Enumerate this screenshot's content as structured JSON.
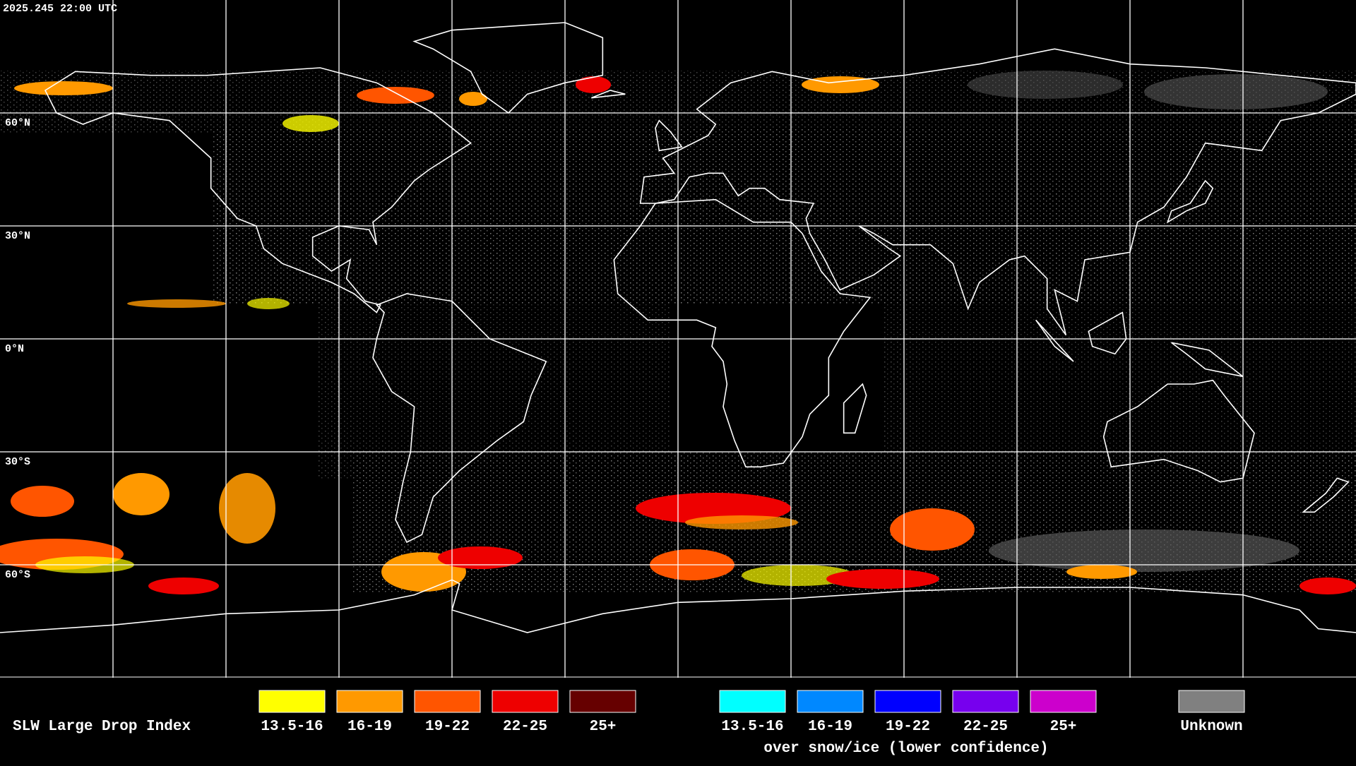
{
  "timestamp": "2025.245 22:00 UTC",
  "latitude_labels": [
    "60°N",
    "30°N",
    "0°N",
    "30°S",
    "60°S"
  ],
  "legend": {
    "title": "SLW Large Drop Index",
    "liquid": [
      {
        "label": "13.5-16",
        "color": "#ffff00"
      },
      {
        "label": "16-19",
        "color": "#ff9900"
      },
      {
        "label": "19-22",
        "color": "#ff5500"
      },
      {
        "label": "22-25",
        "color": "#ee0000"
      },
      {
        "label": "25+",
        "color": "#660000"
      }
    ],
    "snow_ice": [
      {
        "label": "13.5-16",
        "color": "#00ffff"
      },
      {
        "label": "16-19",
        "color": "#0088ff"
      },
      {
        "label": "19-22",
        "color": "#0000ff"
      },
      {
        "label": "22-25",
        "color": "#7700ee"
      },
      {
        "label": "25+",
        "color": "#cc00cc"
      }
    ],
    "snow_ice_caption": "over snow/ice (lower confidence)",
    "unknown": {
      "label": "Unknown",
      "color": "#808080"
    }
  }
}
